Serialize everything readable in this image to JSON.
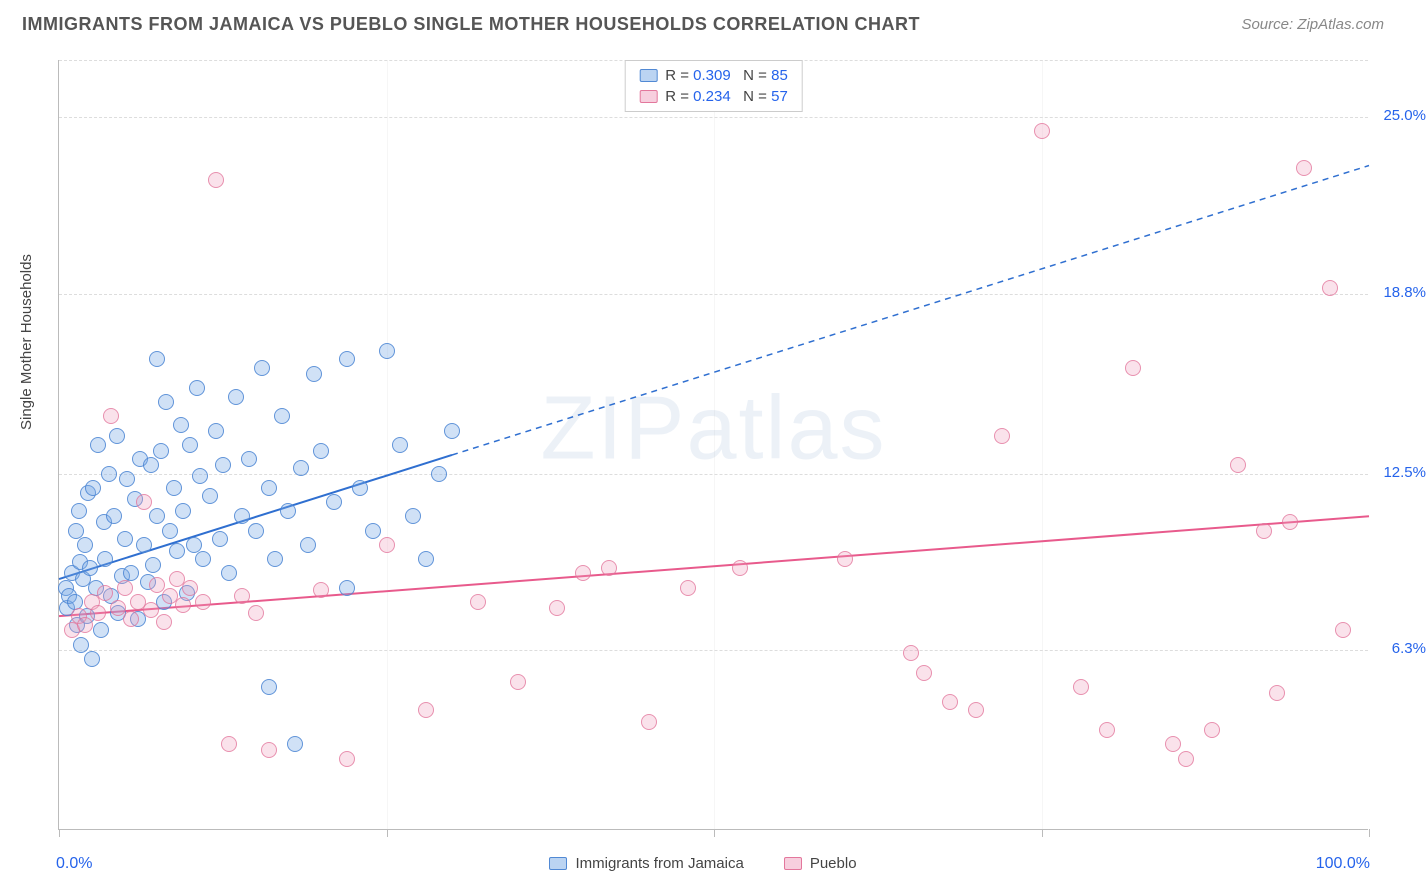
{
  "title": "IMMIGRANTS FROM JAMAICA VS PUEBLO SINGLE MOTHER HOUSEHOLDS CORRELATION CHART",
  "source": "Source: ZipAtlas.com",
  "ylabel": "Single Mother Households",
  "watermark": "ZIPatlas",
  "chart": {
    "type": "scatter",
    "xlim": [
      0,
      100
    ],
    "ylim": [
      0,
      27
    ],
    "x_axis_min_label": "0.0%",
    "x_axis_max_label": "100.0%",
    "y_ticks": [
      6.3,
      12.5,
      18.8,
      25.0
    ],
    "y_tick_labels": [
      "6.3%",
      "12.5%",
      "18.8%",
      "25.0%"
    ],
    "x_tick_positions": [
      0,
      25,
      50,
      75,
      100
    ],
    "grid_color": "#dddddd",
    "axis_color": "#bbbbbb",
    "background": "#ffffff",
    "point_radius": 8,
    "series": [
      {
        "name": "Immigrants from Jamaica",
        "color_fill": "rgba(120,170,230,0.35)",
        "color_stroke": "rgba(70,130,210,0.8)",
        "R": "0.309",
        "N": "85",
        "trend": {
          "x1": 0,
          "y1": 8.8,
          "x2": 100,
          "y2": 23.3,
          "solid_until_x": 30,
          "color": "#2f6fd0",
          "width": 2
        },
        "points": [
          [
            0.5,
            8.5
          ],
          [
            0.6,
            7.8
          ],
          [
            0.8,
            8.2
          ],
          [
            1.0,
            9.0
          ],
          [
            1.2,
            8.0
          ],
          [
            1.3,
            10.5
          ],
          [
            1.4,
            7.2
          ],
          [
            1.5,
            11.2
          ],
          [
            1.6,
            9.4
          ],
          [
            1.7,
            6.5
          ],
          [
            1.8,
            8.8
          ],
          [
            2.0,
            10.0
          ],
          [
            2.1,
            7.5
          ],
          [
            2.2,
            11.8
          ],
          [
            2.4,
            9.2
          ],
          [
            2.5,
            6.0
          ],
          [
            2.6,
            12.0
          ],
          [
            2.8,
            8.5
          ],
          [
            3.0,
            13.5
          ],
          [
            3.2,
            7.0
          ],
          [
            3.4,
            10.8
          ],
          [
            3.5,
            9.5
          ],
          [
            3.8,
            12.5
          ],
          [
            4.0,
            8.2
          ],
          [
            4.2,
            11.0
          ],
          [
            4.4,
            13.8
          ],
          [
            4.5,
            7.6
          ],
          [
            4.8,
            8.9
          ],
          [
            5.0,
            10.2
          ],
          [
            5.2,
            12.3
          ],
          [
            5.5,
            9.0
          ],
          [
            5.8,
            11.6
          ],
          [
            6.0,
            7.4
          ],
          [
            6.2,
            13.0
          ],
          [
            6.5,
            10.0
          ],
          [
            6.8,
            8.7
          ],
          [
            7.0,
            12.8
          ],
          [
            7.2,
            9.3
          ],
          [
            7.5,
            11.0
          ],
          [
            7.8,
            13.3
          ],
          [
            8.0,
            8.0
          ],
          [
            8.2,
            15.0
          ],
          [
            8.5,
            10.5
          ],
          [
            8.8,
            12.0
          ],
          [
            9.0,
            9.8
          ],
          [
            9.3,
            14.2
          ],
          [
            9.5,
            11.2
          ],
          [
            9.8,
            8.3
          ],
          [
            10.0,
            13.5
          ],
          [
            10.3,
            10.0
          ],
          [
            10.5,
            15.5
          ],
          [
            10.8,
            12.4
          ],
          [
            11.0,
            9.5
          ],
          [
            11.5,
            11.7
          ],
          [
            12.0,
            14.0
          ],
          [
            12.3,
            10.2
          ],
          [
            12.5,
            12.8
          ],
          [
            13.0,
            9.0
          ],
          [
            13.5,
            15.2
          ],
          [
            14.0,
            11.0
          ],
          [
            14.5,
            13.0
          ],
          [
            15.0,
            10.5
          ],
          [
            15.5,
            16.2
          ],
          [
            16.0,
            12.0
          ],
          [
            16.5,
            9.5
          ],
          [
            17.0,
            14.5
          ],
          [
            17.5,
            11.2
          ],
          [
            18.0,
            3.0
          ],
          [
            18.5,
            12.7
          ],
          [
            19.0,
            10.0
          ],
          [
            19.5,
            16.0
          ],
          [
            20.0,
            13.3
          ],
          [
            21.0,
            11.5
          ],
          [
            22.0,
            16.5
          ],
          [
            23.0,
            12.0
          ],
          [
            24.0,
            10.5
          ],
          [
            25.0,
            16.8
          ],
          [
            26.0,
            13.5
          ],
          [
            27.0,
            11.0
          ],
          [
            28.0,
            9.5
          ],
          [
            29.0,
            12.5
          ],
          [
            30.0,
            14.0
          ],
          [
            16.0,
            5.0
          ],
          [
            22.0,
            8.5
          ],
          [
            7.5,
            16.5
          ]
        ]
      },
      {
        "name": "Pueblo",
        "color_fill": "rgba(240,160,190,0.3)",
        "color_stroke": "rgba(225,110,150,0.7)",
        "R": "0.234",
        "N": "57",
        "trend": {
          "x1": 0,
          "y1": 7.5,
          "x2": 100,
          "y2": 11.0,
          "solid_until_x": 100,
          "color": "#e85a8c",
          "width": 2
        },
        "points": [
          [
            1.0,
            7.0
          ],
          [
            1.5,
            7.5
          ],
          [
            2.0,
            7.2
          ],
          [
            2.5,
            8.0
          ],
          [
            3.0,
            7.6
          ],
          [
            3.5,
            8.3
          ],
          [
            4.0,
            14.5
          ],
          [
            4.5,
            7.8
          ],
          [
            5.0,
            8.5
          ],
          [
            5.5,
            7.4
          ],
          [
            6.0,
            8.0
          ],
          [
            6.5,
            11.5
          ],
          [
            7.0,
            7.7
          ],
          [
            7.5,
            8.6
          ],
          [
            8.0,
            7.3
          ],
          [
            8.5,
            8.2
          ],
          [
            9.0,
            8.8
          ],
          [
            9.5,
            7.9
          ],
          [
            10.0,
            8.5
          ],
          [
            11.0,
            8.0
          ],
          [
            12.0,
            22.8
          ],
          [
            13.0,
            3.0
          ],
          [
            14.0,
            8.2
          ],
          [
            15.0,
            7.6
          ],
          [
            16.0,
            2.8
          ],
          [
            20.0,
            8.4
          ],
          [
            22.0,
            2.5
          ],
          [
            25.0,
            10.0
          ],
          [
            28.0,
            4.2
          ],
          [
            32.0,
            8.0
          ],
          [
            35.0,
            5.2
          ],
          [
            38.0,
            7.8
          ],
          [
            40.0,
            9.0
          ],
          [
            42.0,
            9.2
          ],
          [
            45.0,
            3.8
          ],
          [
            48.0,
            8.5
          ],
          [
            52.0,
            9.2
          ],
          [
            60.0,
            9.5
          ],
          [
            65.0,
            6.2
          ],
          [
            66.0,
            5.5
          ],
          [
            68.0,
            4.5
          ],
          [
            70.0,
            4.2
          ],
          [
            72.0,
            13.8
          ],
          [
            75.0,
            24.5
          ],
          [
            78.0,
            5.0
          ],
          [
            80.0,
            3.5
          ],
          [
            82.0,
            16.2
          ],
          [
            85.0,
            3.0
          ],
          [
            86.0,
            2.5
          ],
          [
            88.0,
            3.5
          ],
          [
            90.0,
            12.8
          ],
          [
            92.0,
            10.5
          ],
          [
            93.0,
            4.8
          ],
          [
            94.0,
            10.8
          ],
          [
            95.0,
            23.2
          ],
          [
            97.0,
            19.0
          ],
          [
            98.0,
            7.0
          ]
        ]
      }
    ]
  }
}
